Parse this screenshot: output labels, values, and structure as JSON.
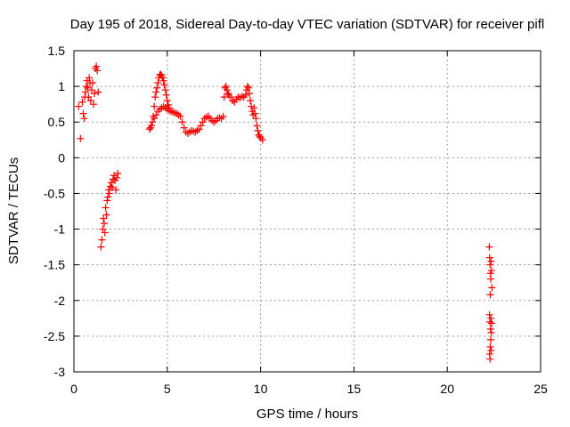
{
  "chart_data": {
    "type": "scatter",
    "title": "Day 195 of 2018, Sidereal Day-to-day VTEC variation (SDTVAR) for receiver pifl",
    "xlabel": "GPS time / hours",
    "ylabel": "SDTVAR / TECUs",
    "xlim": [
      0,
      25
    ],
    "ylim": [
      -3,
      1.5
    ],
    "xticks": [
      0,
      5,
      10,
      15,
      20,
      25
    ],
    "yticks": [
      -3,
      -2.5,
      -2,
      -1.5,
      -1,
      -0.5,
      0,
      0.5,
      1,
      1.5
    ],
    "xtick_labels": [
      "0",
      "5",
      "10",
      "15",
      "20",
      "25"
    ],
    "ytick_labels": [
      "-3",
      "-2.5",
      "-2",
      "-1.5",
      "-1",
      "-0.5",
      "0",
      "0.5",
      "1",
      "1.5"
    ],
    "grid": true,
    "marker": "+",
    "marker_color": "#ff0000",
    "series": [
      {
        "name": "SDTVAR",
        "points": [
          [
            0.25,
            0.72
          ],
          [
            0.35,
            0.27
          ],
          [
            0.45,
            0.78
          ],
          [
            0.5,
            0.62
          ],
          [
            0.55,
            0.55
          ],
          [
            0.58,
            0.85
          ],
          [
            0.62,
            0.92
          ],
          [
            0.66,
            1.0
          ],
          [
            0.7,
            1.08
          ],
          [
            0.74,
            0.98
          ],
          [
            0.78,
            0.85
          ],
          [
            0.82,
            1.12
          ],
          [
            0.86,
            1.05
          ],
          [
            0.9,
            0.8
          ],
          [
            0.95,
            0.95
          ],
          [
            1.0,
            1.05
          ],
          [
            1.05,
            0.75
          ],
          [
            1.1,
            0.9
          ],
          [
            1.15,
            1.25
          ],
          [
            1.2,
            1.28
          ],
          [
            1.25,
            1.22
          ],
          [
            1.3,
            0.92
          ],
          [
            1.45,
            -1.25
          ],
          [
            1.5,
            -1.15
          ],
          [
            1.55,
            -1.0
          ],
          [
            1.58,
            -0.85
          ],
          [
            1.62,
            -0.92
          ],
          [
            1.66,
            -1.05
          ],
          [
            1.7,
            -0.7
          ],
          [
            1.74,
            -0.8
          ],
          [
            1.78,
            -0.6
          ],
          [
            1.82,
            -0.55
          ],
          [
            1.86,
            -0.45
          ],
          [
            1.9,
            -0.5
          ],
          [
            1.95,
            -0.4
          ],
          [
            2.0,
            -0.35
          ],
          [
            2.05,
            -0.42
          ],
          [
            2.1,
            -0.3
          ],
          [
            2.15,
            -0.25
          ],
          [
            2.2,
            -0.32
          ],
          [
            2.25,
            -0.45
          ],
          [
            2.3,
            -0.28
          ],
          [
            2.35,
            -0.22
          ],
          [
            4.05,
            0.4
          ],
          [
            4.1,
            0.42
          ],
          [
            4.15,
            0.45
          ],
          [
            4.2,
            0.5
          ],
          [
            4.25,
            0.58
          ],
          [
            4.3,
            0.72
          ],
          [
            4.35,
            0.85
          ],
          [
            4.4,
            0.92
          ],
          [
            4.45,
            0.98
          ],
          [
            4.5,
            1.05
          ],
          [
            4.55,
            1.12
          ],
          [
            4.6,
            1.16
          ],
          [
            4.65,
            1.17
          ],
          [
            4.7,
            1.15
          ],
          [
            4.75,
            1.12
          ],
          [
            4.8,
            1.08
          ],
          [
            4.85,
            1.02
          ],
          [
            4.9,
            0.95
          ],
          [
            4.95,
            0.88
          ],
          [
            5.0,
            0.8
          ],
          [
            5.05,
            0.74
          ],
          [
            5.1,
            0.7
          ],
          [
            4.3,
            0.55
          ],
          [
            4.4,
            0.6
          ],
          [
            4.5,
            0.65
          ],
          [
            4.6,
            0.68
          ],
          [
            4.7,
            0.7
          ],
          [
            4.8,
            0.72
          ],
          [
            4.9,
            0.7
          ],
          [
            5.0,
            0.68
          ],
          [
            5.1,
            0.66
          ],
          [
            5.2,
            0.65
          ],
          [
            5.3,
            0.64
          ],
          [
            5.4,
            0.63
          ],
          [
            5.5,
            0.62
          ],
          [
            5.6,
            0.6
          ],
          [
            5.7,
            0.58
          ],
          [
            5.8,
            0.5
          ],
          [
            5.9,
            0.42
          ],
          [
            6.0,
            0.36
          ],
          [
            6.1,
            0.34
          ],
          [
            6.2,
            0.36
          ],
          [
            6.3,
            0.38
          ],
          [
            6.4,
            0.37
          ],
          [
            6.5,
            0.36
          ],
          [
            6.6,
            0.38
          ],
          [
            6.7,
            0.4
          ],
          [
            6.8,
            0.45
          ],
          [
            6.9,
            0.5
          ],
          [
            7.0,
            0.55
          ],
          [
            7.1,
            0.57
          ],
          [
            7.2,
            0.58
          ],
          [
            7.3,
            0.55
          ],
          [
            7.4,
            0.52
          ],
          [
            7.5,
            0.5
          ],
          [
            7.6,
            0.52
          ],
          [
            7.7,
            0.55
          ],
          [
            7.8,
            0.56
          ],
          [
            7.9,
            0.55
          ],
          [
            8.0,
            0.58
          ],
          [
            8.05,
            0.85
          ],
          [
            8.1,
            0.98
          ],
          [
            8.15,
            1.0
          ],
          [
            8.2,
            0.95
          ],
          [
            8.25,
            0.9
          ],
          [
            8.3,
            0.88
          ],
          [
            8.4,
            0.85
          ],
          [
            8.5,
            0.8
          ],
          [
            8.6,
            0.78
          ],
          [
            8.7,
            0.82
          ],
          [
            8.8,
            0.85
          ],
          [
            8.9,
            0.84
          ],
          [
            9.0,
            0.86
          ],
          [
            9.1,
            0.85
          ],
          [
            9.2,
            0.88
          ],
          [
            9.25,
            0.95
          ],
          [
            9.3,
            1.0
          ],
          [
            9.35,
            0.98
          ],
          [
            9.4,
            0.9
          ],
          [
            9.45,
            0.8
          ],
          [
            9.5,
            0.72
          ],
          [
            9.55,
            0.65
          ],
          [
            9.6,
            0.6
          ],
          [
            9.65,
            0.7
          ],
          [
            9.7,
            0.62
          ],
          [
            9.75,
            0.55
          ],
          [
            9.8,
            0.45
          ],
          [
            9.85,
            0.38
          ],
          [
            9.9,
            0.32
          ],
          [
            9.95,
            0.3
          ],
          [
            10.0,
            0.28
          ],
          [
            10.1,
            0.25
          ],
          [
            22.25,
            -1.25
          ],
          [
            22.27,
            -1.4
          ],
          [
            22.29,
            -1.5
          ],
          [
            22.31,
            -1.62
          ],
          [
            22.33,
            -1.7
          ],
          [
            22.35,
            -1.45
          ],
          [
            22.37,
            -1.58
          ],
          [
            22.39,
            -1.82
          ],
          [
            22.3,
            -1.92
          ],
          [
            22.26,
            -2.2
          ],
          [
            22.28,
            -2.3
          ],
          [
            22.32,
            -2.4
          ],
          [
            22.34,
            -2.25
          ],
          [
            22.36,
            -2.45
          ],
          [
            22.38,
            -2.32
          ],
          [
            22.3,
            -2.65
          ],
          [
            22.27,
            -2.75
          ],
          [
            22.29,
            -2.82
          ],
          [
            22.33,
            -2.55
          ],
          [
            22.35,
            -2.7
          ]
        ]
      }
    ]
  }
}
